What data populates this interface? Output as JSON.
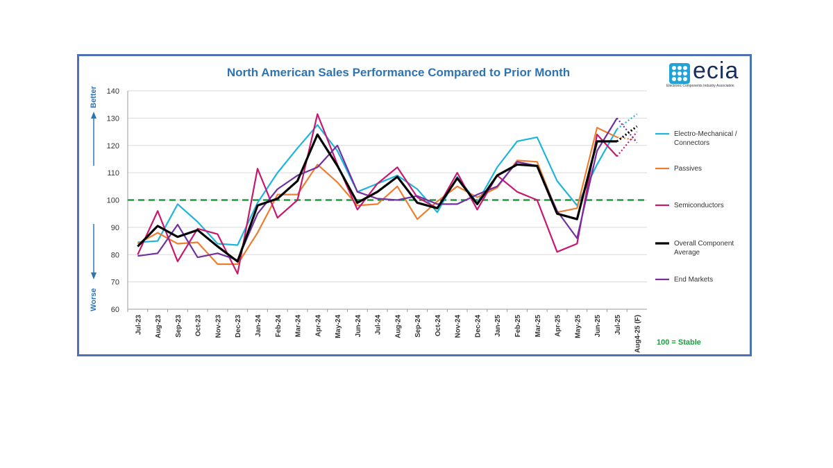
{
  "title": "North American Sales Performance Compared to Prior Month",
  "logo": {
    "word": "ecia",
    "tagline": "Electronic Components Industry Association"
  },
  "y_side_labels": {
    "top": "Better",
    "bottom": "Worse"
  },
  "stable_note": "100 = Stable",
  "colors": {
    "Electro-Mechanical / Connectors": "#1fb4dd",
    "Passives": "#ed7d31",
    "Semiconductors": "#c8176e",
    "Overall Component Average": "#000000",
    "End Markets": "#7030a0",
    "stable_line": "#1a9e3a",
    "side_labels": "#2e74b5"
  },
  "chart_data": {
    "type": "line",
    "title": "North American Sales Performance Compared to Prior Month",
    "categories": [
      "Jul-23",
      "Aug-23",
      "Sep-23",
      "Oct-23",
      "Nov-23",
      "Dec-23",
      "Jan-24",
      "Feb-24",
      "Mar-24",
      "Apr-24",
      "May-24",
      "Jun-24",
      "Jul-24",
      "Aug-24",
      "Sep-24",
      "Oct-24",
      "Nov-24",
      "Dec-24",
      "Jan-25",
      "Feb-25",
      "Mar-25",
      "Apr-25",
      "May-25",
      "Jun-25",
      "Jul-25",
      "Aug4-25 (F)"
    ],
    "ylim": [
      60,
      140
    ],
    "yticks": [
      60,
      70,
      80,
      90,
      100,
      110,
      120,
      130,
      140
    ],
    "grid": true,
    "legend": "right",
    "reference_line": {
      "value": 100,
      "style": "dashed"
    },
    "forecast_category": "Aug4-25 (F)",
    "series": [
      {
        "name": "Electro-Mechanical / Connectors",
        "values": [
          84.5,
          85,
          98.5,
          92,
          84,
          83.5,
          99,
          110,
          119,
          127.5,
          118,
          103,
          106,
          109,
          104,
          95.5,
          108.5,
          99,
          112,
          121.5,
          123,
          107,
          98,
          113,
          126,
          131.5
        ]
      },
      {
        "name": "Passives",
        "values": [
          84,
          88,
          84,
          84.5,
          76.5,
          76.5,
          88,
          102,
          102,
          113,
          106.5,
          98,
          98.5,
          105,
          93,
          99.5,
          105,
          101,
          104.5,
          114.5,
          114,
          95.5,
          97,
          126.5,
          123,
          122
        ]
      },
      {
        "name": "Semiconductors",
        "values": [
          80,
          96,
          77.5,
          89.5,
          87.5,
          73,
          111.5,
          93.5,
          100,
          131.5,
          113,
          96.5,
          106,
          112,
          101,
          97,
          110,
          96.5,
          109,
          103,
          100,
          81,
          84,
          124,
          116,
          125
        ]
      },
      {
        "name": "Overall Component Average",
        "values": [
          83,
          90.5,
          86.5,
          89,
          83,
          77.5,
          98,
          100.5,
          107,
          124,
          112.5,
          99,
          103,
          108.5,
          99,
          97,
          108,
          98.5,
          109,
          113,
          112.5,
          95,
          93,
          121.5,
          121.5,
          127
        ]
      },
      {
        "name": "End Markets",
        "values": [
          79.5,
          80.5,
          91,
          79,
          80.5,
          78,
          95,
          104,
          109,
          112,
          120,
          103,
          100.5,
          100,
          101.5,
          98.5,
          98.5,
          102,
          105,
          114,
          112.5,
          96,
          86,
          118,
          130,
          121
        ]
      }
    ]
  }
}
